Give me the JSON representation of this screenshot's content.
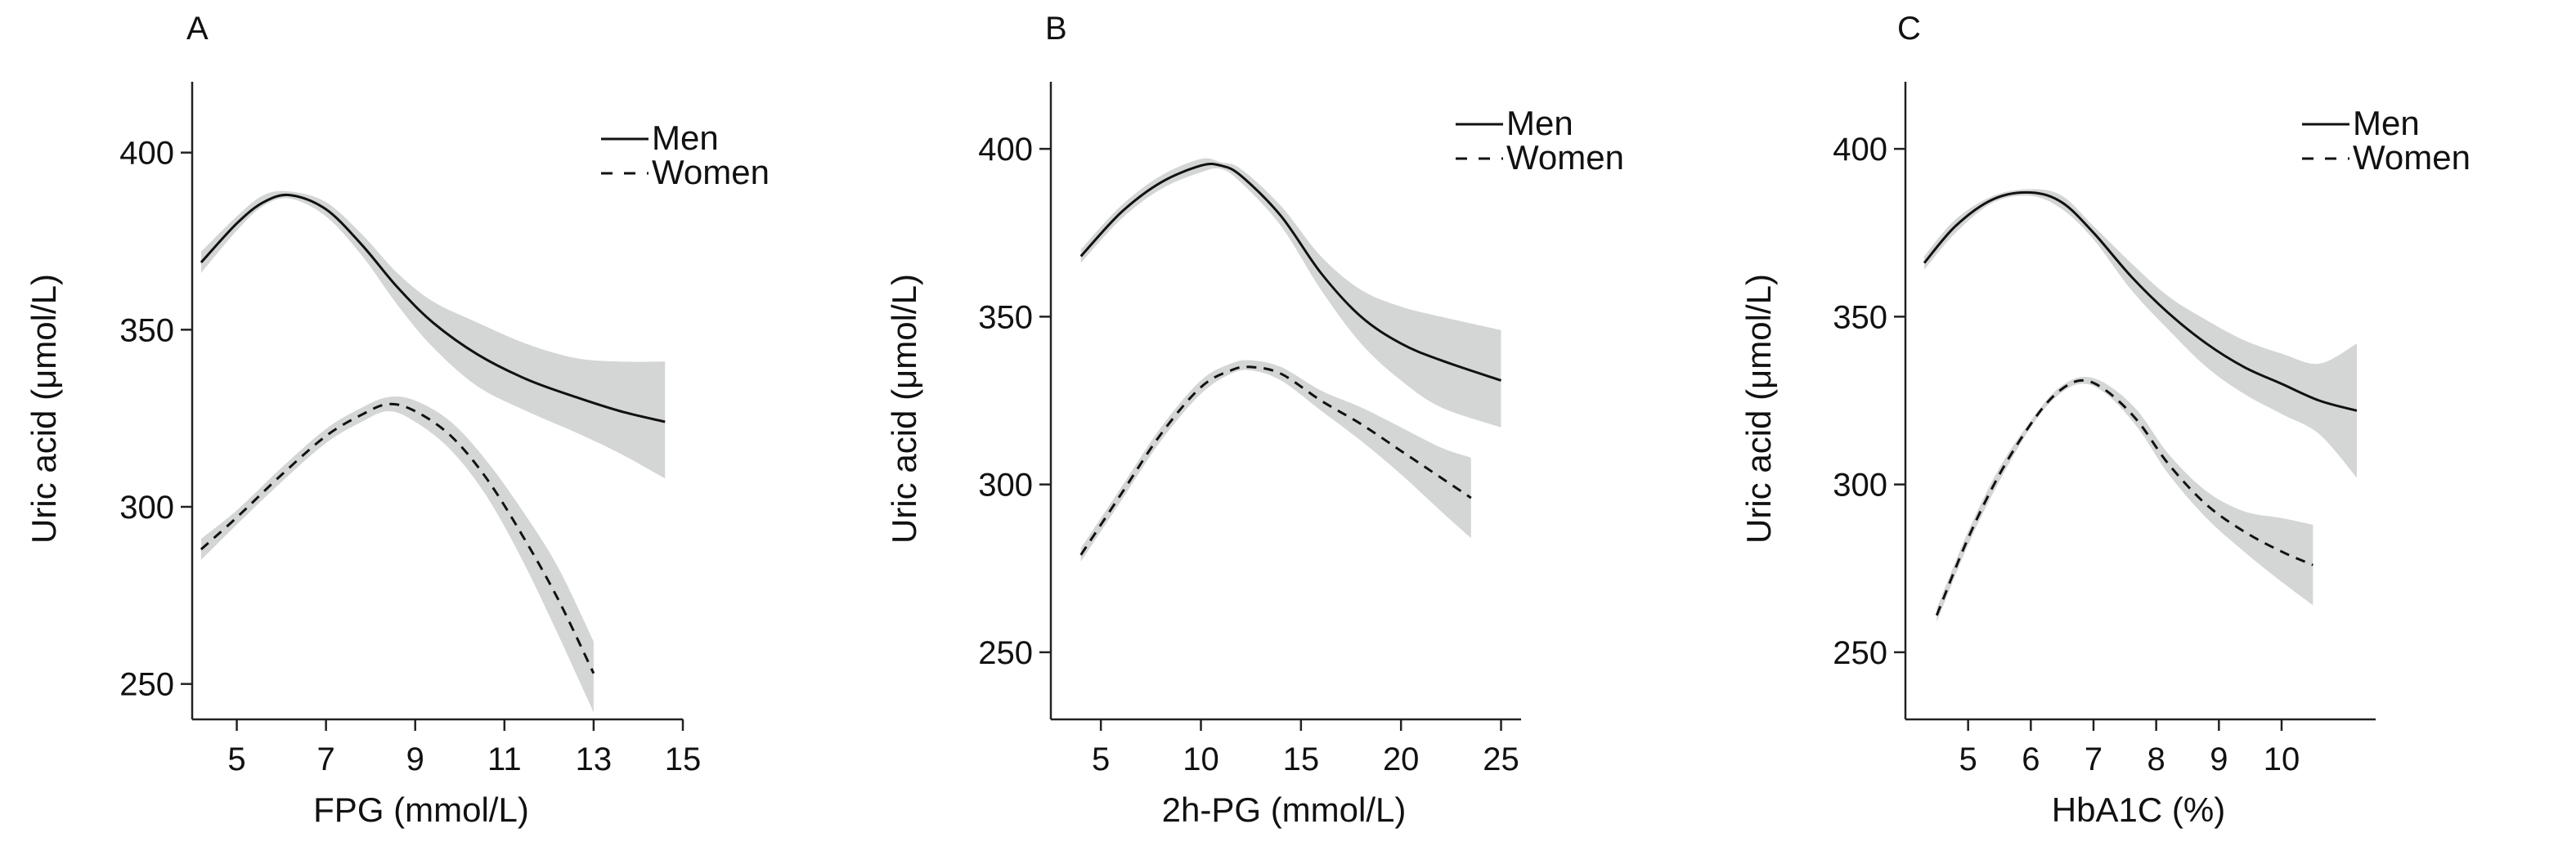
{
  "chart_data": [
    {
      "type": "line",
      "panel_label": "A",
      "xlabel": "FPG (mmol/L)",
      "ylabel": "Uric acid (μmol/L)",
      "xlim": [
        4,
        15
      ],
      "ylim": [
        240,
        420
      ],
      "xticks": [
        5,
        7,
        9,
        11,
        13,
        15
      ],
      "yticks": [
        250,
        300,
        350,
        400
      ],
      "legend": {
        "position": "top-right"
      },
      "series": [
        {
          "name": "Men",
          "line_style": "solid",
          "x": [
            4.2,
            5.0,
            5.6,
            6.2,
            7.0,
            7.8,
            8.6,
            9.4,
            10.4,
            11.5,
            12.6,
            13.6,
            14.6
          ],
          "y": [
            369,
            380,
            386,
            388,
            384,
            374,
            362,
            352,
            343,
            336,
            331,
            327,
            324
          ],
          "ci_lower": [
            366,
            378,
            385,
            387,
            382,
            371,
            357,
            345,
            334,
            327,
            321,
            315,
            308
          ],
          "ci_upper": [
            372,
            382,
            388,
            389,
            386,
            377,
            366,
            358,
            352,
            346,
            342,
            341,
            341
          ]
        },
        {
          "name": "Women",
          "line_style": "dashed",
          "x": [
            4.2,
            5.0,
            6.0,
            7.0,
            7.8,
            8.4,
            9.0,
            9.8,
            10.6,
            11.4,
            12.2,
            13.0
          ],
          "y": [
            288,
            297,
            309,
            320,
            326,
            329,
            327,
            320,
            308,
            292,
            274,
            253
          ],
          "ci_lower": [
            285,
            295,
            307,
            318,
            324,
            327,
            324,
            316,
            303,
            285,
            264,
            242
          ],
          "ci_upper": [
            291,
            299,
            311,
            322,
            328,
            331,
            330,
            324,
            313,
            299,
            283,
            262
          ]
        }
      ]
    },
    {
      "type": "line",
      "panel_label": "B",
      "xlabel": "2h-PG (mmol/L)",
      "ylabel": "Uric acid (μmol/L)",
      "xlim": [
        2.5,
        26
      ],
      "ylim": [
        230,
        420
      ],
      "xticks": [
        5,
        10,
        15,
        20,
        25
      ],
      "yticks": [
        250,
        300,
        350,
        400
      ],
      "legend": {
        "position": "top-right"
      },
      "series": [
        {
          "name": "Men",
          "line_style": "solid",
          "x": [
            4,
            6,
            8,
            10,
            11,
            12,
            14,
            16,
            18,
            20,
            22,
            25
          ],
          "y": [
            368,
            381,
            390,
            395,
            395,
            392,
            380,
            363,
            350,
            342,
            337,
            331
          ],
          "ci_lower": [
            366,
            379,
            388,
            393,
            394,
            390,
            377,
            358,
            342,
            331,
            323,
            317
          ],
          "ci_upper": [
            370,
            383,
            392,
            397,
            396,
            394,
            383,
            368,
            358,
            353,
            350,
            346
          ]
        },
        {
          "name": "Women",
          "line_style": "dashed",
          "x": [
            4,
            6,
            8,
            10,
            11.5,
            12.5,
            14,
            16,
            18,
            20,
            22,
            23.5
          ],
          "y": [
            279,
            297,
            315,
            329,
            334,
            335,
            333,
            325,
            318,
            310,
            302,
            296
          ],
          "ci_lower": [
            277,
            295,
            313,
            327,
            333,
            334,
            331,
            322,
            313,
            303,
            292,
            284
          ],
          "ci_upper": [
            281,
            299,
            317,
            331,
            336,
            337,
            335,
            328,
            323,
            317,
            311,
            308
          ]
        }
      ]
    },
    {
      "type": "line",
      "panel_label": "C",
      "xlabel": "HbA1C (%)",
      "ylabel": "Uric acid (μmol/L)",
      "xlim": [
        4,
        11.5
      ],
      "ylim": [
        230,
        420
      ],
      "xticks": [
        5,
        6,
        7,
        8,
        9,
        10
      ],
      "yticks": [
        250,
        300,
        350,
        400
      ],
      "legend": {
        "position": "top-right"
      },
      "series": [
        {
          "name": "Men",
          "line_style": "solid",
          "x": [
            4.3,
            4.8,
            5.4,
            6.0,
            6.5,
            7.0,
            7.6,
            8.2,
            8.8,
            9.4,
            10.0,
            10.6,
            11.2
          ],
          "y": [
            366,
            377,
            385,
            387,
            384,
            375,
            362,
            351,
            342,
            335,
            330,
            325,
            322
          ],
          "ci_lower": [
            364,
            375,
            384,
            386,
            382,
            373,
            358,
            346,
            335,
            327,
            321,
            315,
            302
          ],
          "ci_upper": [
            368,
            379,
            386,
            388,
            386,
            377,
            366,
            356,
            349,
            343,
            339,
            336,
            342
          ]
        },
        {
          "name": "Women",
          "line_style": "dashed",
          "x": [
            4.5,
            5.0,
            5.5,
            6.0,
            6.4,
            6.8,
            7.2,
            7.7,
            8.2,
            8.8,
            9.4,
            10.0,
            10.5
          ],
          "y": [
            261,
            284,
            303,
            318,
            327,
            331,
            328,
            319,
            306,
            294,
            286,
            280,
            276
          ],
          "ci_lower": [
            259,
            282,
            301,
            317,
            326,
            330,
            327,
            317,
            303,
            290,
            280,
            271,
            264
          ],
          "ci_upper": [
            263,
            286,
            305,
            319,
            328,
            332,
            330,
            322,
            309,
            298,
            292,
            290,
            288
          ]
        }
      ]
    }
  ]
}
